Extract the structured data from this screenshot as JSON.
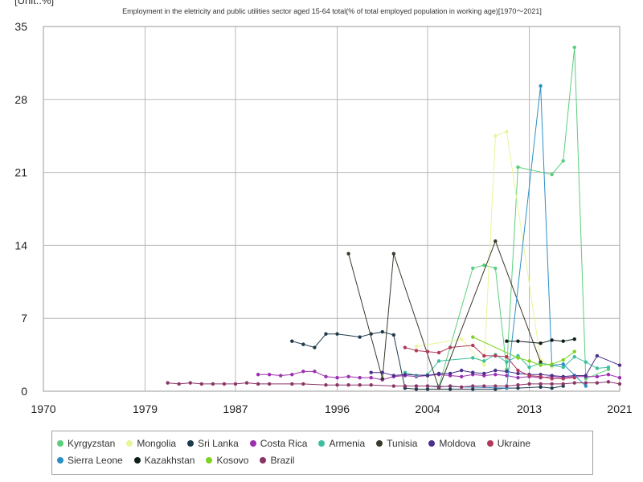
{
  "unit_label": "[Unit.:%]",
  "chart_data": {
    "type": "line",
    "title": "Employment in the eletricity and public utilities sector aged 15-64 total(% of total employed population in working age)[1970～2021]",
    "xlabel": "",
    "ylabel": "[Unit.:%]",
    "xlim": [
      1970,
      2021
    ],
    "ylim": [
      0,
      35
    ],
    "x_ticks": [
      1970,
      1979,
      1987,
      1996,
      2004,
      2013,
      2021
    ],
    "y_ticks": [
      0,
      7,
      14,
      21,
      28,
      35
    ],
    "grid": true,
    "legend_position": "bottom",
    "series": [
      {
        "name": "Kyrgyzstan",
        "color": "#5ccf7c",
        "points": [
          [
            2005,
            0.5
          ],
          [
            2008,
            11.8
          ],
          [
            2009,
            12.1
          ],
          [
            2010,
            11.8
          ],
          [
            2011,
            2.1
          ],
          [
            2012,
            21.5
          ],
          [
            2015,
            20.8
          ],
          [
            2016,
            22.1
          ],
          [
            2017,
            33.0
          ],
          [
            2018,
            1.2
          ],
          [
            2020,
            2.1
          ]
        ]
      },
      {
        "name": "Mongolia",
        "color": "#e8f59a",
        "points": [
          [
            2003,
            4.3
          ],
          [
            2007,
            5.0
          ],
          [
            2009,
            2.5
          ],
          [
            2010,
            24.5
          ],
          [
            2011,
            24.9
          ],
          [
            2014,
            3.0
          ],
          [
            2015,
            2.3
          ]
        ]
      },
      {
        "name": "Sri Lanka",
        "color": "#1e3a4c",
        "points": [
          [
            1992,
            4.8
          ],
          [
            1993,
            4.5
          ],
          [
            1994,
            4.2
          ],
          [
            1995,
            5.5
          ],
          [
            1996,
            5.5
          ],
          [
            1998,
            5.2
          ],
          [
            1999,
            5.5
          ],
          [
            2000,
            5.7
          ],
          [
            2001,
            5.4
          ],
          [
            2002,
            0.3
          ],
          [
            2003,
            0.2
          ],
          [
            2004,
            0.2
          ],
          [
            2006,
            0.2
          ],
          [
            2008,
            0.2
          ],
          [
            2010,
            0.2
          ],
          [
            2011,
            0.3
          ],
          [
            2012,
            0.3
          ],
          [
            2014,
            0.4
          ],
          [
            2015,
            0.3
          ],
          [
            2016,
            0.5
          ]
        ]
      },
      {
        "name": "Costa Rica",
        "color": "#9b2fae",
        "points": [
          [
            1989,
            1.6
          ],
          [
            1990,
            1.6
          ],
          [
            1991,
            1.5
          ],
          [
            1992,
            1.6
          ],
          [
            1993,
            1.9
          ],
          [
            1994,
            1.9
          ],
          [
            1995,
            1.4
          ],
          [
            1996,
            1.3
          ],
          [
            1997,
            1.4
          ],
          [
            1998,
            1.3
          ],
          [
            1999,
            1.3
          ],
          [
            2000,
            1.1
          ],
          [
            2001,
            1.4
          ],
          [
            2002,
            1.5
          ],
          [
            2003,
            1.4
          ],
          [
            2004,
            1.5
          ],
          [
            2005,
            1.6
          ],
          [
            2006,
            1.5
          ],
          [
            2007,
            1.4
          ],
          [
            2008,
            1.6
          ],
          [
            2009,
            1.5
          ],
          [
            2010,
            1.6
          ],
          [
            2011,
            1.5
          ],
          [
            2012,
            1.3
          ],
          [
            2013,
            1.4
          ],
          [
            2014,
            1.3
          ],
          [
            2015,
            1.4
          ],
          [
            2016,
            1.3
          ],
          [
            2017,
            1.4
          ],
          [
            2018,
            1.4
          ],
          [
            2019,
            1.4
          ],
          [
            2020,
            1.6
          ],
          [
            2021,
            1.3
          ]
        ]
      },
      {
        "name": "Armenia",
        "color": "#3fbfa0",
        "points": [
          [
            2002,
            1.8
          ],
          [
            2003,
            1.5
          ],
          [
            2004,
            1.6
          ],
          [
            2005,
            2.9
          ],
          [
            2008,
            3.2
          ],
          [
            2009,
            2.9
          ],
          [
            2010,
            3.5
          ],
          [
            2011,
            2.8
          ],
          [
            2012,
            3.4
          ],
          [
            2013,
            2.3
          ],
          [
            2014,
            2.7
          ],
          [
            2015,
            2.5
          ],
          [
            2016,
            2.3
          ],
          [
            2017,
            3.3
          ],
          [
            2018,
            2.8
          ],
          [
            2019,
            2.2
          ],
          [
            2020,
            2.3
          ]
        ]
      },
      {
        "name": "Tunisia",
        "color": "#3a3a2c",
        "points": [
          [
            1997,
            13.2
          ],
          [
            2000,
            1.2
          ],
          [
            2001,
            13.2
          ],
          [
            2005,
            0.3
          ],
          [
            2010,
            14.4
          ],
          [
            2014,
            2.8
          ]
        ]
      },
      {
        "name": "Moldova",
        "color": "#4b2f8a",
        "points": [
          [
            1999,
            1.8
          ],
          [
            2000,
            1.8
          ],
          [
            2001,
            1.5
          ],
          [
            2002,
            1.6
          ],
          [
            2004,
            1.5
          ],
          [
            2005,
            1.7
          ],
          [
            2006,
            1.7
          ],
          [
            2007,
            2.0
          ],
          [
            2008,
            1.8
          ],
          [
            2009,
            1.7
          ],
          [
            2010,
            2.0
          ],
          [
            2011,
            1.9
          ],
          [
            2012,
            1.7
          ],
          [
            2013,
            1.6
          ],
          [
            2014,
            1.6
          ],
          [
            2015,
            1.5
          ],
          [
            2016,
            1.4
          ],
          [
            2017,
            1.5
          ],
          [
            2018,
            1.5
          ],
          [
            2019,
            3.4
          ],
          [
            2021,
            2.5
          ]
        ]
      },
      {
        "name": "Ukraine",
        "color": "#b03a5a",
        "points": [
          [
            2002,
            4.2
          ],
          [
            2003,
            3.9
          ],
          [
            2004,
            3.8
          ],
          [
            2005,
            3.7
          ],
          [
            2006,
            4.2
          ],
          [
            2008,
            4.4
          ],
          [
            2009,
            3.4
          ],
          [
            2010,
            3.4
          ],
          [
            2011,
            3.3
          ],
          [
            2012,
            2.0
          ],
          [
            2013,
            1.5
          ],
          [
            2014,
            1.4
          ],
          [
            2015,
            1.2
          ],
          [
            2016,
            1.2
          ],
          [
            2017,
            1.3
          ]
        ]
      },
      {
        "name": "Sierra Leone",
        "color": "#2b8fc4",
        "points": [
          [
            2003,
            0.5
          ],
          [
            2004,
            0.5
          ],
          [
            2011,
            0.3
          ],
          [
            2014,
            29.3
          ],
          [
            2015,
            2.5
          ],
          [
            2016,
            2.6
          ],
          [
            2018,
            0.5
          ]
        ]
      },
      {
        "name": "Kazakhstan",
        "color": "#0d1e1a",
        "points": [
          [
            2011,
            4.8
          ],
          [
            2012,
            4.8
          ],
          [
            2014,
            4.6
          ],
          [
            2015,
            4.9
          ],
          [
            2016,
            4.8
          ],
          [
            2017,
            5.0
          ]
        ]
      },
      {
        "name": "Kosovo",
        "color": "#7ed321",
        "points": [
          [
            2008,
            5.2
          ],
          [
            2012,
            3.2
          ],
          [
            2013,
            2.9
          ],
          [
            2014,
            2.5
          ],
          [
            2015,
            2.6
          ],
          [
            2016,
            3.0
          ],
          [
            2017,
            3.8
          ]
        ]
      },
      {
        "name": "Brazil",
        "color": "#8a3566",
        "points": [
          [
            1981,
            0.8
          ],
          [
            1982,
            0.7
          ],
          [
            1983,
            0.8
          ],
          [
            1984,
            0.7
          ],
          [
            1985,
            0.7
          ],
          [
            1986,
            0.7
          ],
          [
            1987,
            0.7
          ],
          [
            1988,
            0.8
          ],
          [
            1989,
            0.7
          ],
          [
            1990,
            0.7
          ],
          [
            1992,
            0.7
          ],
          [
            1993,
            0.7
          ],
          [
            1995,
            0.6
          ],
          [
            1996,
            0.6
          ],
          [
            1997,
            0.6
          ],
          [
            1998,
            0.6
          ],
          [
            1999,
            0.6
          ],
          [
            2001,
            0.5
          ],
          [
            2002,
            0.5
          ],
          [
            2003,
            0.5
          ],
          [
            2004,
            0.5
          ],
          [
            2005,
            0.4
          ],
          [
            2006,
            0.5
          ],
          [
            2007,
            0.4
          ],
          [
            2008,
            0.5
          ],
          [
            2009,
            0.5
          ],
          [
            2010,
            0.5
          ],
          [
            2011,
            0.5
          ],
          [
            2012,
            0.6
          ],
          [
            2013,
            0.7
          ],
          [
            2014,
            0.7
          ],
          [
            2015,
            0.7
          ],
          [
            2016,
            0.7
          ],
          [
            2017,
            0.8
          ],
          [
            2018,
            0.8
          ],
          [
            2019,
            0.8
          ],
          [
            2020,
            0.9
          ],
          [
            2021,
            0.7
          ]
        ]
      }
    ]
  }
}
